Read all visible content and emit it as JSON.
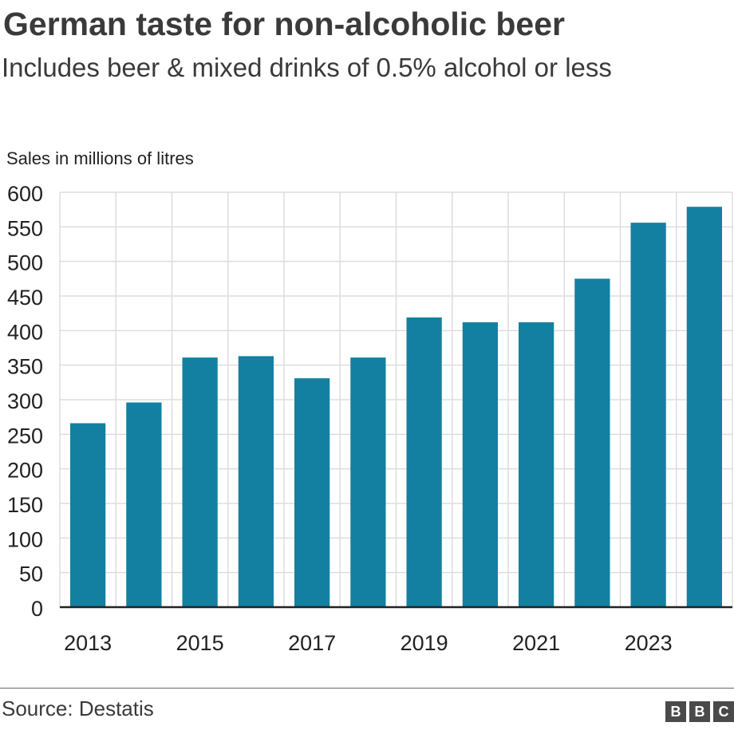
{
  "header": {
    "title": "German taste for non-alcoholic beer",
    "subtitle": "Includes beer & mixed drinks of 0.5% alcohol or less"
  },
  "footer": {
    "source": "Source: Destatis",
    "logo_letters": [
      "B",
      "B",
      "C"
    ]
  },
  "chart_data": {
    "type": "bar",
    "title": "German taste for non-alcoholic beer",
    "subtitle": "Includes beer & mixed drinks of 0.5% alcohol or less",
    "ylabel": "Sales in millions of litres",
    "xlabel": "",
    "categories": [
      "2013",
      "2014",
      "2015",
      "2016",
      "2017",
      "2018",
      "2019",
      "2020",
      "2021",
      "2022",
      "2023",
      "2024"
    ],
    "x_tick_labels": [
      "2013",
      "2015",
      "2017",
      "2019",
      "2021",
      "2023"
    ],
    "values": [
      266,
      296,
      361,
      363,
      331,
      361,
      419,
      412,
      412,
      475,
      556,
      579
    ],
    "ylim": [
      0,
      600
    ],
    "yticks": [
      0,
      50,
      100,
      150,
      200,
      250,
      300,
      350,
      400,
      450,
      500,
      550,
      600
    ],
    "grid": true,
    "legend": "none",
    "bar_color": "#1380a1",
    "grid_color": "#dddddd",
    "axis_color": "#222222"
  }
}
